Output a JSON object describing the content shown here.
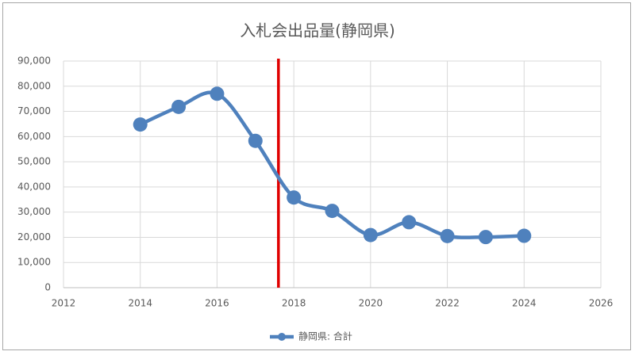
{
  "chart_data": {
    "type": "line",
    "title": "入札会出品量(静岡県)",
    "x": [
      2014,
      2015,
      2016,
      2017,
      2018,
      2019,
      2020,
      2021,
      2022,
      2023,
      2024
    ],
    "series": [
      {
        "name": "静岡県: 合計",
        "color": "#4f81bd",
        "values": [
          64800,
          71800,
          77000,
          58300,
          35800,
          30500,
          20900,
          26000,
          20500,
          20100,
          20600
        ]
      }
    ],
    "xlim": [
      2012,
      2026
    ],
    "xticks": [
      2012,
      2014,
      2016,
      2018,
      2020,
      2022,
      2024,
      2026
    ],
    "ylim": [
      0,
      90000
    ],
    "yticks": [
      0,
      {
        "value": 10000,
        "label": "10,000"
      },
      {
        "value": 20000,
        "label": "20,000"
      },
      {
        "value": 30000,
        "label": "30,000"
      },
      {
        "value": 40000,
        "label": "40,000"
      },
      {
        "value": 50000,
        "label": "50,000"
      },
      {
        "value": 60000,
        "label": "60,000"
      },
      {
        "value": 70000,
        "label": "70,000"
      },
      {
        "value": 80000,
        "label": "80,000"
      },
      {
        "value": 90000,
        "label": "90,000"
      }
    ],
    "grid": true,
    "smooth": true,
    "legend": "bottom",
    "reference_line": {
      "x": 2017.6,
      "color": "#e00000"
    }
  }
}
